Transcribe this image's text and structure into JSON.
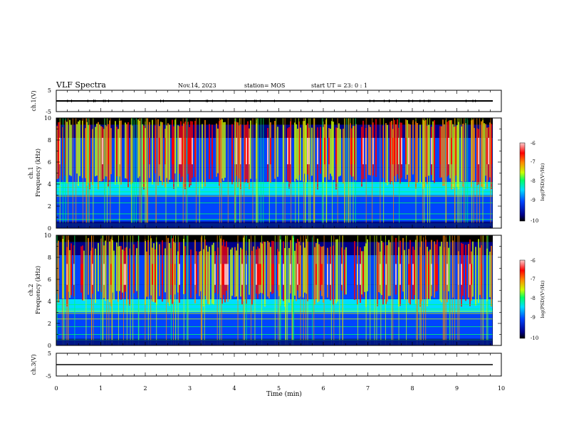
{
  "header": {
    "title": "VLF Spectra",
    "date": "Nov.14, 2023",
    "station": "station= MOS",
    "start": "start  UT  =   23: 0   : 1"
  },
  "colors": {
    "spectrum_scale": [
      "#000000",
      "#000088",
      "#0044ff",
      "#00ddff",
      "#00ff66",
      "#ccff00",
      "#ff8800",
      "#ff0000",
      "#ffcccc"
    ]
  },
  "chart_data": [
    {
      "type": "line",
      "panel": "ch1-waveform",
      "ylabel": "ch.1(V)",
      "ylim": [
        -5,
        5
      ],
      "y_ticks": [
        "5",
        "-5"
      ],
      "series": [
        {
          "values": [
            0,
            0
          ]
        }
      ],
      "x": [
        0,
        9.8
      ]
    },
    {
      "type": "heatmap",
      "panel": "ch1-spectrogram",
      "ylabel": "ch.1\nFrequency (kHz)",
      "ylim": [
        0,
        10
      ],
      "y_ticks": [
        "0",
        "2",
        "4",
        "6",
        "8",
        "10"
      ],
      "xlim": [
        0,
        10
      ],
      "data_end_min": 9.8,
      "colorbar": {
        "ticks": [
          "-6",
          "-7",
          "-8",
          "-9",
          "-10"
        ],
        "label": "log(PSD)(V²/Hz)",
        "range": [
          -10,
          -6
        ]
      }
    },
    {
      "type": "heatmap",
      "panel": "ch2-spectrogram",
      "ylabel": "ch.2\nFrequency (kHz)",
      "ylim": [
        0,
        10
      ],
      "y_ticks": [
        "0",
        "2",
        "4",
        "6",
        "8",
        "10"
      ],
      "xlim": [
        0,
        10
      ],
      "data_end_min": 9.8,
      "colorbar": {
        "ticks": [
          "-6",
          "-7",
          "-8",
          "-9",
          "-10"
        ],
        "label": "log(PSD)(V²/Hz)",
        "range": [
          -10,
          -6
        ]
      }
    },
    {
      "type": "line",
      "panel": "ch3-waveform",
      "ylabel": "ch.3(V)",
      "ylim": [
        -5,
        5
      ],
      "y_ticks": [
        "5",
        "-5"
      ],
      "series": [
        {
          "values": [
            0,
            0
          ]
        }
      ],
      "x": [
        0,
        9.8
      ]
    }
  ],
  "xaxis": {
    "label": "Time (min)",
    "ticks": [
      "0",
      "1",
      "2",
      "3",
      "4",
      "5",
      "6",
      "7",
      "8",
      "9",
      "10"
    ]
  }
}
